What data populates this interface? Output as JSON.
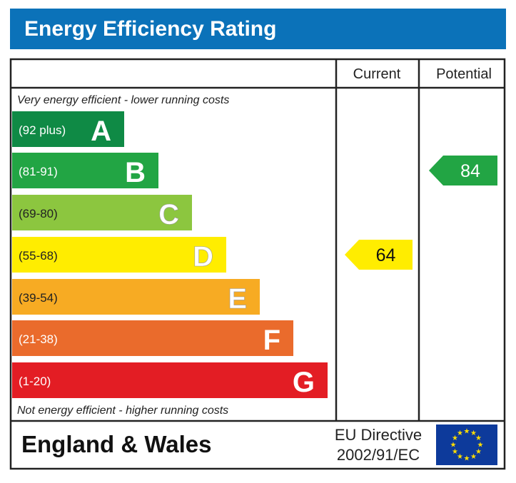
{
  "title": "Energy Efficiency Rating",
  "columns": {
    "current": "Current",
    "potential": "Potential"
  },
  "top_note": "Very energy efficient - lower running costs",
  "bottom_note": "Not energy efficient - higher running costs",
  "footer": {
    "region": "England & Wales",
    "directive_line1": "EU Directive",
    "directive_line2": "2002/91/EC",
    "flag_icon": "eu-flag-icon"
  },
  "chart_data": {
    "type": "bar",
    "title": "Energy Efficiency Rating",
    "bands": [
      {
        "letter": "A",
        "range": "(92 plus)",
        "color": "#0f8a45"
      },
      {
        "letter": "B",
        "range": "(81-91)",
        "color": "#22a544"
      },
      {
        "letter": "C",
        "range": "(69-80)",
        "color": "#8cc63f"
      },
      {
        "letter": "D",
        "range": "(55-68)",
        "color": "#ffed00"
      },
      {
        "letter": "E",
        "range": "(39-54)",
        "color": "#f7ab23"
      },
      {
        "letter": "F",
        "range": "(21-38)",
        "color": "#ea6b2c"
      },
      {
        "letter": "G",
        "range": "(1-20)",
        "color": "#e31d24"
      }
    ],
    "current": {
      "value": 64,
      "band": "D",
      "color": "#ffed00"
    },
    "potential": {
      "value": 84,
      "band": "B",
      "color": "#22a544"
    }
  }
}
